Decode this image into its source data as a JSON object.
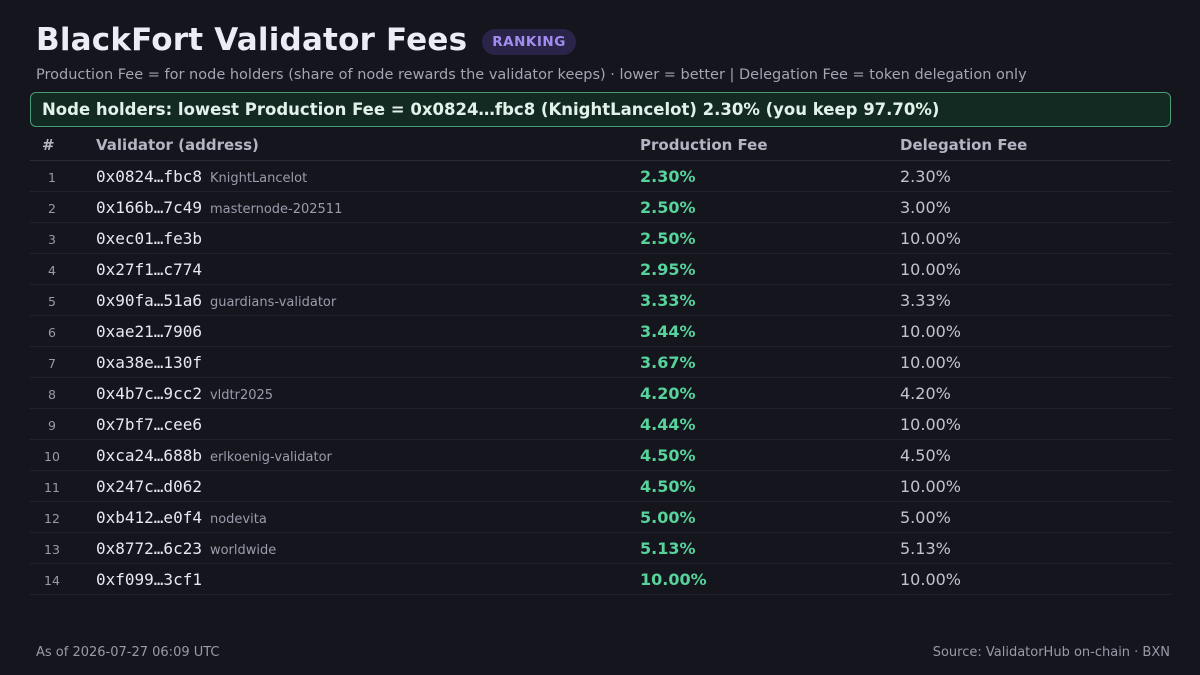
{
  "header": {
    "title": "BlackFort Validator Fees",
    "badge": "RANKING",
    "subtitle": "Production Fee = for node holders (share of node rewards the validator keeps) · lower = better | Delegation Fee = token delegation only"
  },
  "banner": {
    "text": "Node holders: lowest Production Fee = 0x0824…fbc8 (KnightLancelot) 2.30% (you keep 97.70%)"
  },
  "table": {
    "columns": [
      "#",
      "Validator (address)",
      "Production Fee",
      "Delegation Fee"
    ],
    "rows": [
      {
        "rank": "1",
        "address": "0x0824…fbc8",
        "name": "KnightLancelot",
        "production_fee": "2.30%",
        "delegation_fee": "2.30%"
      },
      {
        "rank": "2",
        "address": "0x166b…7c49",
        "name": "masternode-202511",
        "production_fee": "2.50%",
        "delegation_fee": "3.00%"
      },
      {
        "rank": "3",
        "address": "0xec01…fe3b",
        "name": "",
        "production_fee": "2.50%",
        "delegation_fee": "10.00%"
      },
      {
        "rank": "4",
        "address": "0x27f1…c774",
        "name": "",
        "production_fee": "2.95%",
        "delegation_fee": "10.00%"
      },
      {
        "rank": "5",
        "address": "0x90fa…51a6",
        "name": "guardians-validator",
        "production_fee": "3.33%",
        "delegation_fee": "3.33%"
      },
      {
        "rank": "6",
        "address": "0xae21…7906",
        "name": "",
        "production_fee": "3.44%",
        "delegation_fee": "10.00%"
      },
      {
        "rank": "7",
        "address": "0xa38e…130f",
        "name": "",
        "production_fee": "3.67%",
        "delegation_fee": "10.00%"
      },
      {
        "rank": "8",
        "address": "0x4b7c…9cc2",
        "name": "vldtr2025",
        "production_fee": "4.20%",
        "delegation_fee": "4.20%"
      },
      {
        "rank": "9",
        "address": "0x7bf7…cee6",
        "name": "",
        "production_fee": "4.44%",
        "delegation_fee": "10.00%"
      },
      {
        "rank": "10",
        "address": "0xca24…688b",
        "name": "erlkoenig-validator",
        "production_fee": "4.50%",
        "delegation_fee": "4.50%"
      },
      {
        "rank": "11",
        "address": "0x247c…d062",
        "name": "",
        "production_fee": "4.50%",
        "delegation_fee": "10.00%"
      },
      {
        "rank": "12",
        "address": "0xb412…e0f4",
        "name": "nodevita",
        "production_fee": "5.00%",
        "delegation_fee": "5.00%"
      },
      {
        "rank": "13",
        "address": "0x8772…6c23",
        "name": "worldwide",
        "production_fee": "5.13%",
        "delegation_fee": "5.13%"
      },
      {
        "rank": "14",
        "address": "0xf099…3cf1",
        "name": "",
        "production_fee": "10.00%",
        "delegation_fee": "10.00%"
      }
    ]
  },
  "footer": {
    "as_of": "As of 2026-07-27 06:09 UTC",
    "source": "Source: ValidatorHub on-chain · BXN"
  },
  "colors": {
    "background": "#15151e",
    "accent_green": "#57d29a",
    "badge_purple": "#a38cf0",
    "banner_border": "#4b9c76"
  }
}
